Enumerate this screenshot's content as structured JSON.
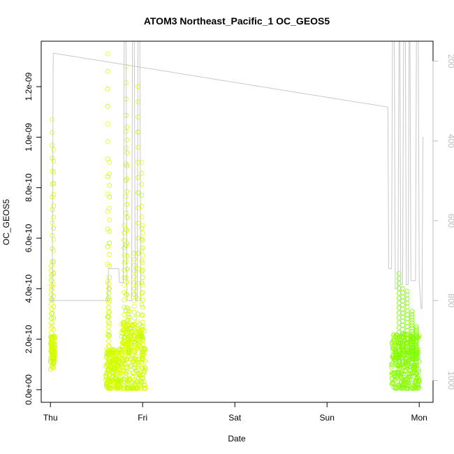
{
  "chart_data": {
    "type": "scatter",
    "title": "ATOM3 Northeast_Pacific_1 OC_GEOS5",
    "xlabel": "Date",
    "ylabel": "OC_GEOS5",
    "x_ticks": [
      "Thu",
      "Fri",
      "Sat",
      "Sun",
      "Mon"
    ],
    "x_range_days": [
      -0.1,
      4.15
    ],
    "ylim": [
      -5e-11,
      1.38e-09
    ],
    "y_ticks": [
      "0.0e+00",
      "2.0e-10",
      "4.0e-10",
      "6.0e-10",
      "8.0e-10",
      "1.0e-09",
      "1.2e-09"
    ],
    "y_tick_values": [
      0,
      2e-10,
      4e-10,
      6e-10,
      8e-10,
      1e-09,
      1.2e-09
    ],
    "right_axis": {
      "ticks": [
        "200",
        "400",
        "600",
        "800",
        "1000"
      ],
      "values": [
        200,
        400,
        600,
        800,
        1000
      ],
      "range": [
        1055,
        150
      ],
      "color": "#bdbdbd"
    },
    "series": [
      {
        "type": "scatter",
        "colors": [
          "#ccff00",
          "#ddff00",
          "#e8ff00",
          "#b4ff00",
          "#99ff00",
          "#7cfc00"
        ],
        "segments": [
          {
            "start": 0.0,
            "end": 0.05,
            "base": 1.5e-10,
            "spread": 7e-11,
            "spikes": [
              [
                0.02,
                1.07e-09
              ],
              [
                0.01,
                4.9e-10
              ],
              [
                0.035,
                9.5e-10
              ]
            ]
          },
          {
            "start": 0.6,
            "end": 0.77,
            "base": 8e-11,
            "spread": 8e-11,
            "spikes": [
              [
                0.62,
                1.33e-09
              ],
              [
                0.63,
                4.2e-10
              ],
              [
                0.64,
                9e-10
              ]
            ]
          },
          {
            "start": 0.77,
            "end": 1.03,
            "base": 1.2e-10,
            "spread": 1.5e-10,
            "spikes": [
              [
                0.8,
                6.5e-10
              ],
              [
                0.82,
                1.28e-09
              ],
              [
                0.83,
                1.04e-09
              ],
              [
                0.91,
                5.4e-10
              ],
              [
                0.95,
                1.2e-09
              ],
              [
                0.99,
                9e-10
              ],
              [
                1.0,
                6.5e-10
              ],
              [
                0.85,
                3.2e-10
              ]
            ]
          },
          {
            "start": 3.7,
            "end": 4.0,
            "base": 1.1e-10,
            "spread": 1.1e-10,
            "spikes": [
              [
                3.78,
                4.6e-10
              ],
              [
                3.82,
                4e-10
              ],
              [
                3.87,
                3.9e-10
              ],
              [
                3.92,
                3.1e-10
              ],
              [
                3.97,
                2.5e-10
              ]
            ]
          }
        ]
      },
      {
        "type": "line",
        "name_axis": "right",
        "color": "#c8c8c8",
        "points": [
          [
            0.0,
            800
          ],
          [
            0.02,
            800
          ],
          [
            0.03,
            180
          ],
          [
            3.66,
            315
          ],
          [
            3.67,
            720
          ],
          [
            3.7,
            720
          ],
          [
            3.71,
            150
          ],
          [
            3.73,
            150
          ],
          [
            3.74,
            770
          ],
          [
            3.77,
            770
          ],
          [
            3.78,
            150
          ],
          [
            3.79,
            150
          ],
          [
            3.8,
            760
          ],
          [
            3.82,
            760
          ],
          [
            3.83,
            150
          ],
          [
            3.85,
            150
          ],
          [
            3.86,
            760
          ],
          [
            3.88,
            760
          ],
          [
            3.89,
            150
          ],
          [
            3.9,
            150
          ],
          [
            3.91,
            750
          ],
          [
            3.93,
            750
          ],
          [
            3.95,
            750
          ],
          [
            3.96,
            750
          ],
          [
            3.97,
            150
          ],
          [
            3.99,
            150
          ],
          [
            4.0,
            750
          ],
          [
            4.02,
            820
          ],
          [
            4.03,
            820
          ],
          [
            4.04,
            390
          ]
        ],
        "extra_path": [
          [
            0.0,
            800
          ],
          [
            0.62,
            800
          ],
          [
            0.63,
            720
          ],
          [
            0.74,
            720
          ],
          [
            0.75,
            755
          ],
          [
            0.79,
            755
          ],
          [
            0.8,
            150
          ],
          [
            0.82,
            150
          ],
          [
            0.83,
            800
          ],
          [
            0.88,
            800
          ],
          [
            0.89,
            150
          ],
          [
            0.91,
            150
          ],
          [
            0.92,
            800
          ],
          [
            0.94,
            800
          ],
          [
            0.95,
            150
          ],
          [
            0.97,
            150
          ],
          [
            0.98,
            800
          ],
          [
            1.0,
            800
          ]
        ]
      }
    ],
    "grid": false,
    "legend": "none"
  }
}
